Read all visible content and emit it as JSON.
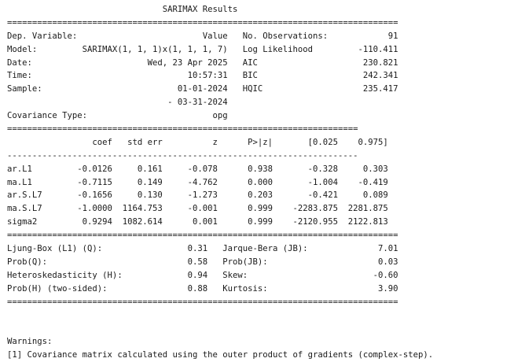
{
  "title": "SARIMAX Results",
  "rule_double": "==============================================================================",
  "rule_double_short": "===========================================================================",
  "rule_single": "---------------------------------------------------------------------------",
  "header_left": [
    {
      "label": "Dep. Variable:",
      "value": "Value"
    },
    {
      "label": "Model:",
      "value": "SARIMAX(1, 1, 1)x(1, 1, 1, 7)"
    },
    {
      "label": "Date:",
      "value": "Wed, 23 Apr 2025"
    },
    {
      "label": "Time:",
      "value": "10:57:31"
    },
    {
      "label": "Sample:",
      "value": "01-01-2024"
    },
    {
      "label": "",
      "value": "- 03-31-2024"
    },
    {
      "label": "Covariance Type:",
      "value": "opg"
    }
  ],
  "header_right": [
    {
      "label": "No. Observations:",
      "value": "91"
    },
    {
      "label": "Log Likelihood",
      "value": "-110.411"
    },
    {
      "label": "AIC",
      "value": "230.821"
    },
    {
      "label": "BIC",
      "value": "242.341"
    },
    {
      "label": "HQIC",
      "value": "235.417"
    }
  ],
  "coef_columns": [
    "coef",
    "std err",
    "z",
    "P>|z|",
    "[0.025",
    "0.975]"
  ],
  "coef_rows": [
    {
      "name": "ar.L1",
      "values": [
        "-0.0126",
        "0.161",
        "-0.078",
        "0.938",
        "-0.328",
        "0.303"
      ]
    },
    {
      "name": "ma.L1",
      "values": [
        "-0.7115",
        "0.149",
        "-4.762",
        "0.000",
        "-1.004",
        "-0.419"
      ]
    },
    {
      "name": "ar.S.L7",
      "values": [
        "-0.1656",
        "0.130",
        "-1.273",
        "0.203",
        "-0.421",
        "0.089"
      ]
    },
    {
      "name": "ma.S.L7",
      "values": [
        "-1.0000",
        "1164.753",
        "-0.001",
        "0.999",
        "-2283.875",
        "2281.875"
      ]
    },
    {
      "name": "sigma2",
      "values": [
        "0.9294",
        "1082.614",
        "0.001",
        "0.999",
        "-2120.955",
        "2122.813"
      ]
    }
  ],
  "diag_left": [
    {
      "label": "Ljung-Box (L1) (Q):",
      "value": "0.31"
    },
    {
      "label": "Prob(Q):",
      "value": "0.58"
    },
    {
      "label": "Heteroskedasticity (H):",
      "value": "0.94"
    },
    {
      "label": "Prob(H) (two-sided):",
      "value": "0.88"
    }
  ],
  "diag_right": [
    {
      "label": "Jarque-Bera (JB):",
      "value": "7.01"
    },
    {
      "label": "Prob(JB):",
      "value": "0.03"
    },
    {
      "label": "Skew:",
      "value": "-0.60"
    },
    {
      "label": "Kurtosis:",
      "value": "3.90"
    }
  ],
  "warnings_title": "Warnings:",
  "warnings": [
    "[1] Covariance matrix calculated using the outer product of gradients (complex-step)."
  ]
}
